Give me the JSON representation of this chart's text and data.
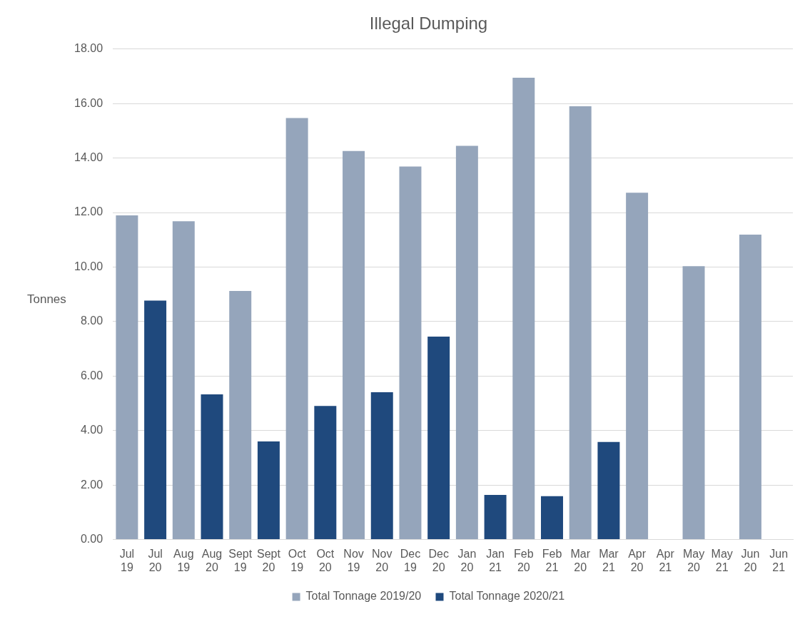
{
  "chart_data": {
    "type": "bar",
    "title": "Illegal Dumping",
    "ylabel": "Tonnes",
    "categories": [
      "Jul 19",
      "Jul 20",
      "Aug 19",
      "Aug 20",
      "Sept 19",
      "Sept 20",
      "Oct 19",
      "Oct 20",
      "Nov 19",
      "Nov 20",
      "Dec 19",
      "Dec 20",
      "Jan 20",
      "Jan 21",
      "Feb 20",
      "Feb 21",
      "Mar 20",
      "Mar 21",
      "Apr 20",
      "Apr 21",
      "May 20",
      "May 21",
      "Jun 20",
      "Jun 21"
    ],
    "series": [
      {
        "name": "Total Tonnage 2019/20",
        "color": "#95a5bb",
        "values": [
          11.9,
          null,
          11.68,
          null,
          9.12,
          null,
          15.47,
          null,
          14.26,
          null,
          13.69,
          null,
          14.45,
          null,
          16.95,
          null,
          15.9,
          null,
          12.73,
          null,
          10.03,
          null,
          11.19,
          null
        ]
      },
      {
        "name": "Total Tonnage 2020/21",
        "color": "#1f497d",
        "values": [
          null,
          8.77,
          null,
          5.33,
          null,
          3.6,
          null,
          4.9,
          null,
          5.41,
          null,
          7.45,
          null,
          1.64,
          null,
          1.59,
          null,
          3.58,
          null,
          null,
          null,
          null,
          null,
          null
        ]
      }
    ],
    "ylim": [
      0,
      18
    ],
    "yticks": [
      {
        "value": 0,
        "label": "0.00"
      },
      {
        "value": 2,
        "label": "2.00"
      },
      {
        "value": 4,
        "label": "4.00"
      },
      {
        "value": 6,
        "label": "6.00"
      },
      {
        "value": 8,
        "label": "8.00"
      },
      {
        "value": 10,
        "label": "10.00"
      },
      {
        "value": 12,
        "label": "12.00"
      },
      {
        "value": 14,
        "label": "14.00"
      },
      {
        "value": 16,
        "label": "16.00"
      },
      {
        "value": 18,
        "label": "18.00"
      }
    ],
    "grid": "y",
    "legend": "bottom"
  }
}
